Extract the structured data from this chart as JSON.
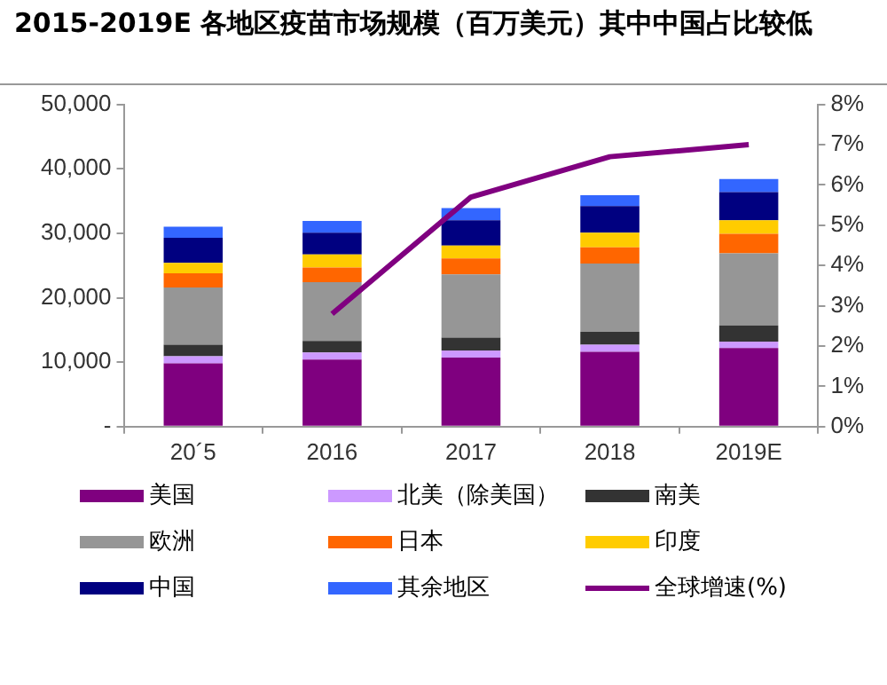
{
  "chart_data": {
    "type": "bar",
    "title": "2015-2019E 各地区疫苗市场规模（百万美元）其中中国占比较低",
    "categories": [
      "20´5",
      "2016",
      "2017",
      "2018",
      "2019E"
    ],
    "stacked": true,
    "series": [
      {
        "name": "美国",
        "color": "#7f007f",
        "values": [
          9800,
          10400,
          10700,
          11600,
          12200
        ]
      },
      {
        "name": "北美（除美国）",
        "color": "#cc99ff",
        "values": [
          1100,
          1100,
          1100,
          1100,
          1000
        ]
      },
      {
        "name": "南美",
        "color": "#333333",
        "values": [
          1800,
          1800,
          2000,
          2000,
          2500
        ]
      },
      {
        "name": "欧洲",
        "color": "#969696",
        "values": [
          8900,
          9100,
          9800,
          10600,
          11200
        ]
      },
      {
        "name": "日本",
        "color": "#ff6600",
        "values": [
          2200,
          2300,
          2500,
          2500,
          3000
        ]
      },
      {
        "name": "印度",
        "color": "#ffcc00",
        "values": [
          1600,
          2000,
          2000,
          2300,
          2100
        ]
      },
      {
        "name": "中国",
        "color": "#000080",
        "values": [
          3900,
          3400,
          3900,
          4100,
          4400
        ]
      },
      {
        "name": "其余地区",
        "color": "#3366ff",
        "values": [
          1700,
          1800,
          1900,
          1700,
          2000
        ]
      },
      {
        "name": "全球增速(%)",
        "type": "line",
        "axis": "y2",
        "color": "#800080",
        "marker": "none",
        "values": [
          null,
          2.8,
          5.7,
          6.7,
          7.0
        ]
      }
    ],
    "ylim": [
      0,
      50000
    ],
    "yticks": [
      {
        "value": 0,
        "label": "-"
      },
      {
        "value": 10000,
        "label": "10,000"
      },
      {
        "value": 20000,
        "label": "20,000"
      },
      {
        "value": 30000,
        "label": "30,000"
      },
      {
        "value": 40000,
        "label": "40,000"
      },
      {
        "value": 50000,
        "label": "50,000"
      }
    ],
    "y2lim": [
      0,
      8
    ],
    "y2ticks": [
      {
        "value": 0,
        "label": "0%"
      },
      {
        "value": 1,
        "label": "1%"
      },
      {
        "value": 2,
        "label": "2%"
      },
      {
        "value": 3,
        "label": "3%"
      },
      {
        "value": 4,
        "label": "4%"
      },
      {
        "value": 5,
        "label": "5%"
      },
      {
        "value": 6,
        "label": "6%"
      },
      {
        "value": 7,
        "label": "7%"
      },
      {
        "value": 8,
        "label": "8%"
      }
    ],
    "grid": false,
    "legend": "bottom"
  }
}
